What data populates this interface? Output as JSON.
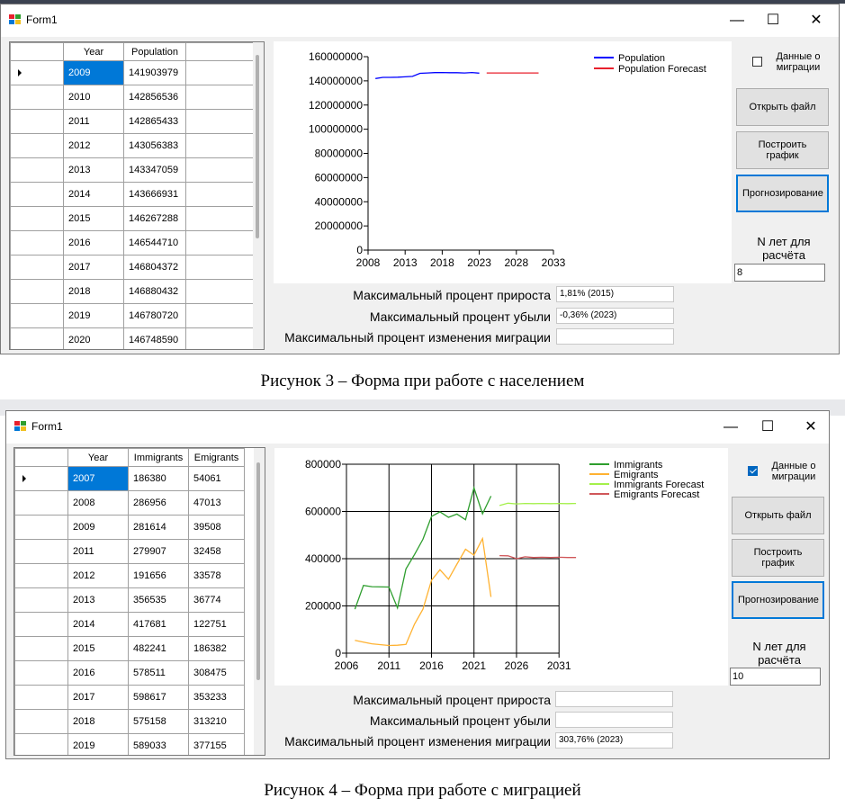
{
  "caption1": "Рисунок 3 – Форма при работе с населением",
  "caption2": "Рисунок 4 – Форма при работе с миграцией",
  "colors": {
    "population": "#0000ff",
    "pop_forecast": "#e8212d",
    "immigrants": "#2e9e2e",
    "emigrants": "#ffb231",
    "imm_forecast": "#a4f04a",
    "emi_forecast": "#d0575a",
    "selected": "#0078d7"
  },
  "form1": {
    "title": "Form1",
    "controls": {
      "minimize": "—",
      "maximize": "☐",
      "close": "✕"
    },
    "grid": {
      "columns": [
        "Year",
        "Population"
      ],
      "rows": [
        [
          "2009",
          "141903979"
        ],
        [
          "2010",
          "142856536"
        ],
        [
          "2011",
          "142865433"
        ],
        [
          "2012",
          "143056383"
        ],
        [
          "2013",
          "143347059"
        ],
        [
          "2014",
          "143666931"
        ],
        [
          "2015",
          "146267288"
        ],
        [
          "2016",
          "146544710"
        ],
        [
          "2017",
          "146804372"
        ],
        [
          "2018",
          "146880432"
        ],
        [
          "2019",
          "146780720"
        ],
        [
          "2020",
          "146748590"
        ]
      ]
    },
    "migration_checkbox": {
      "label": "Данные о миграции",
      "checked": false
    },
    "buttons": {
      "open": "Открыть файл",
      "plot": "Построить график",
      "forecast": "Прогнозирование"
    },
    "n_years_label": "N лет для расчёта",
    "n_years_value": "8",
    "stats": [
      {
        "label": "Максимальный процент прироста",
        "value": "1,81% (2015)"
      },
      {
        "label": "Максимальный процент убыли",
        "value": "-0,36% (2023)"
      },
      {
        "label": "Максимальный процент изменения миграции",
        "value": ""
      }
    ],
    "chart_data": {
      "type": "line",
      "x_ticks": [
        "2008",
        "2013",
        "2018",
        "2023",
        "2028",
        "2033"
      ],
      "y_ticks": [
        "0",
        "20000000",
        "40000000",
        "60000000",
        "80000000",
        "100000000",
        "120000000",
        "140000000",
        "160000000"
      ],
      "xlim": [
        2008,
        2033
      ],
      "ylim": [
        0,
        160000000
      ],
      "grid": false,
      "legend_position": "top-right",
      "series": [
        {
          "name": "Population",
          "x": [
            2009,
            2010,
            2011,
            2012,
            2013,
            2014,
            2015,
            2016,
            2017,
            2018,
            2019,
            2020,
            2021,
            2022,
            2023
          ],
          "y": [
            141903979,
            142856536,
            142865433,
            143056383,
            143347059,
            143666931,
            146267288,
            146544710,
            146804372,
            146880432,
            146780720,
            146748590,
            146500000,
            146900000,
            146400000
          ]
        },
        {
          "name": "Population Forecast",
          "x": [
            2024,
            2025,
            2026,
            2027,
            2028,
            2029,
            2030,
            2031
          ],
          "y": [
            146500000,
            146550000,
            146500000,
            146550000,
            146500000,
            146550000,
            146500000,
            146500000
          ]
        }
      ]
    }
  },
  "form2": {
    "title": "Form1",
    "controls": {
      "minimize": "—",
      "maximize": "☐",
      "close": "✕"
    },
    "grid": {
      "columns": [
        "Year",
        "Immigrants",
        "Emigrants"
      ],
      "rows": [
        [
          "2007",
          "186380",
          "54061"
        ],
        [
          "2008",
          "286956",
          "47013"
        ],
        [
          "2009",
          "281614",
          "39508"
        ],
        [
          "2011",
          "279907",
          "32458"
        ],
        [
          "2012",
          "191656",
          "33578"
        ],
        [
          "2013",
          "356535",
          "36774"
        ],
        [
          "2014",
          "417681",
          "122751"
        ],
        [
          "2015",
          "482241",
          "186382"
        ],
        [
          "2016",
          "578511",
          "308475"
        ],
        [
          "2017",
          "598617",
          "353233"
        ],
        [
          "2018",
          "575158",
          "313210"
        ],
        [
          "2019",
          "589033",
          "377155"
        ]
      ]
    },
    "migration_checkbox": {
      "label": "Данные о миграции",
      "checked": true
    },
    "buttons": {
      "open": "Открыть файл",
      "plot": "Построить график",
      "forecast": "Прогнозирование"
    },
    "n_years_label": "N лет для расчёта",
    "n_years_value": "10",
    "stats": [
      {
        "label": "Максимальный процент прироста",
        "value": ""
      },
      {
        "label": "Максимальный процент убыли",
        "value": ""
      },
      {
        "label": "Максимальный процент изменения миграции",
        "value": "303,76% (2023)"
      }
    ],
    "chart_data": {
      "type": "line",
      "x_ticks": [
        "2006",
        "2011",
        "2016",
        "2021",
        "2026",
        "2031"
      ],
      "y_ticks": [
        "0",
        "200000",
        "400000",
        "600000",
        "800000"
      ],
      "xlim": [
        2006,
        2035
      ],
      "ylim": [
        0,
        800000
      ],
      "grid": true,
      "legend_position": "top-right",
      "series": [
        {
          "name": "Immigrants",
          "x": [
            2007,
            2008,
            2009,
            2011,
            2012,
            2013,
            2014,
            2015,
            2016,
            2017,
            2018,
            2019,
            2020,
            2021,
            2022,
            2023
          ],
          "y": [
            186380,
            286956,
            281614,
            279907,
            191656,
            356535,
            417681,
            482241,
            578511,
            598617,
            575158,
            589033,
            565000,
            700000,
            590000,
            665000
          ]
        },
        {
          "name": "Emigrants",
          "x": [
            2007,
            2008,
            2009,
            2011,
            2012,
            2013,
            2014,
            2015,
            2016,
            2017,
            2018,
            2019,
            2020,
            2021,
            2022,
            2023
          ],
          "y": [
            54061,
            47013,
            39508,
            32458,
            33578,
            36774,
            122751,
            186382,
            308475,
            353233,
            313210,
            377155,
            440000,
            415000,
            485000,
            238000
          ]
        },
        {
          "name": "Immigrants Forecast",
          "x": [
            2024,
            2025,
            2026,
            2027,
            2028,
            2029,
            2030,
            2031,
            2032,
            2033
          ],
          "y": [
            625000,
            635000,
            632000,
            634000,
            633000,
            634000,
            633000,
            634000,
            633000,
            634000
          ]
        },
        {
          "name": "Emigrants Forecast",
          "x": [
            2024,
            2025,
            2026,
            2027,
            2028,
            2029,
            2030,
            2031,
            2032,
            2033
          ],
          "y": [
            413000,
            412000,
            400000,
            408000,
            405000,
            406000,
            405000,
            406000,
            405000,
            405000
          ]
        }
      ]
    }
  }
}
